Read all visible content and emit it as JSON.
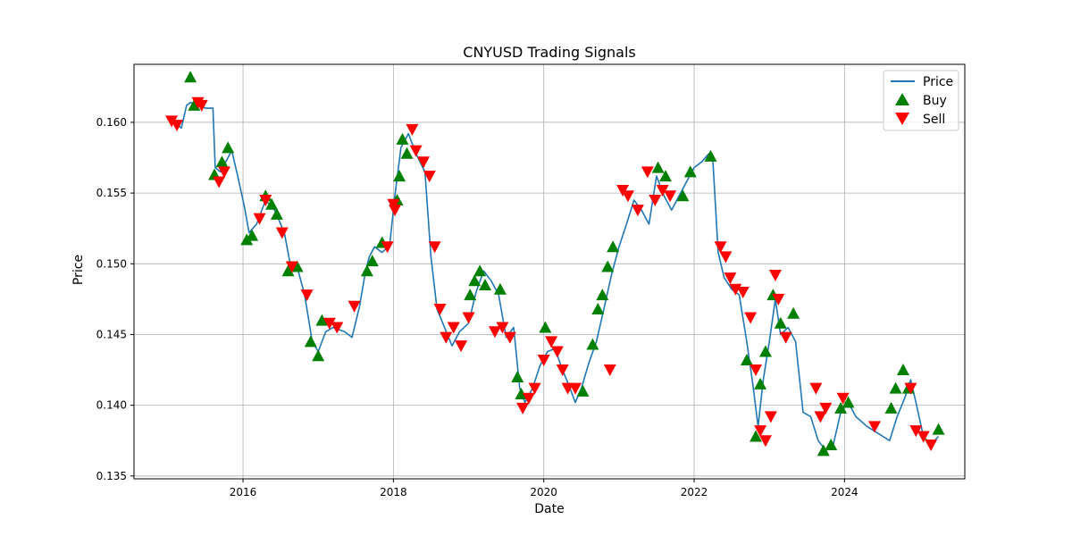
{
  "chart_data": {
    "type": "line",
    "title": "CNYUSD Trading Signals",
    "xlabel": "Date",
    "ylabel": "Price",
    "xlim": [
      2014.55,
      2025.6
    ],
    "ylim": [
      0.1348,
      0.1641
    ],
    "grid": true,
    "legend_position": "top-right",
    "x_ticks": [
      2016,
      2018,
      2020,
      2022,
      2024
    ],
    "x_tick_labels": [
      "2016",
      "2018",
      "2020",
      "2022",
      "2024"
    ],
    "y_ticks": [
      0.135,
      0.14,
      0.145,
      0.15,
      0.155,
      0.16
    ],
    "y_tick_labels": [
      "0.135",
      "0.140",
      "0.145",
      "0.150",
      "0.155",
      "0.160"
    ],
    "colors": {
      "price": "#1f77b4",
      "buy": "#008000",
      "sell": "#ff0000",
      "grid": "#b0b0b0"
    },
    "series": [
      {
        "name": "Price",
        "kind": "line",
        "x": [
          2015.05,
          2015.18,
          2015.25,
          2015.3,
          2015.42,
          2015.5,
          2015.6,
          2015.63,
          2015.7,
          2015.78,
          2015.85,
          2015.93,
          2016.02,
          2016.08,
          2016.18,
          2016.3,
          2016.42,
          2016.55,
          2016.62,
          2016.72,
          2016.82,
          2016.92,
          2017.0,
          2017.1,
          2017.2,
          2017.35,
          2017.45,
          2017.55,
          2017.63,
          2017.68,
          2017.75,
          2017.85,
          2017.95,
          2018.02,
          2018.1,
          2018.2,
          2018.3,
          2018.42,
          2018.5,
          2018.58,
          2018.68,
          2018.78,
          2018.88,
          2019.0,
          2019.1,
          2019.2,
          2019.3,
          2019.4,
          2019.5,
          2019.6,
          2019.68,
          2019.75,
          2019.85,
          2019.95,
          2020.05,
          2020.15,
          2020.25,
          2020.35,
          2020.42,
          2020.5,
          2020.6,
          2020.7,
          2020.8,
          2020.9,
          2021.0,
          2021.1,
          2021.2,
          2021.3,
          2021.4,
          2021.5,
          2021.6,
          2021.7,
          2021.8,
          2021.9,
          2022.0,
          2022.1,
          2022.2,
          2022.25,
          2022.32,
          2022.4,
          2022.5,
          2022.6,
          2022.7,
          2022.78,
          2022.85,
          2022.92,
          2023.0,
          2023.08,
          2023.15,
          2023.25,
          2023.35,
          2023.45,
          2023.55,
          2023.65,
          2023.75,
          2023.85,
          2023.95,
          2024.05,
          2024.15,
          2024.3,
          2024.45,
          2024.6,
          2024.7,
          2024.8,
          2024.88,
          2024.95,
          2025.05,
          2025.15,
          2025.25
        ],
        "y": [
          0.1601,
          0.1596,
          0.1612,
          0.1614,
          0.1612,
          0.161,
          0.161,
          0.1568,
          0.1565,
          0.1573,
          0.158,
          0.1562,
          0.154,
          0.1522,
          0.1528,
          0.1545,
          0.1538,
          0.1522,
          0.1502,
          0.1498,
          0.1478,
          0.1445,
          0.1438,
          0.1452,
          0.1455,
          0.1452,
          0.1448,
          0.147,
          0.1495,
          0.1505,
          0.1512,
          0.1508,
          0.1513,
          0.1548,
          0.1582,
          0.1592,
          0.1578,
          0.1565,
          0.1505,
          0.1468,
          0.1455,
          0.1442,
          0.1452,
          0.1458,
          0.148,
          0.1495,
          0.1488,
          0.1478,
          0.1448,
          0.1455,
          0.1412,
          0.1402,
          0.1412,
          0.1428,
          0.1438,
          0.144,
          0.1425,
          0.1412,
          0.1402,
          0.1412,
          0.143,
          0.1445,
          0.1468,
          0.1492,
          0.1512,
          0.1528,
          0.1545,
          0.1538,
          0.1528,
          0.1562,
          0.1548,
          0.1538,
          0.1548,
          0.1558,
          0.1568,
          0.1572,
          0.1578,
          0.1572,
          0.1508,
          0.149,
          0.1482,
          0.1478,
          0.1445,
          0.1415,
          0.1385,
          0.1418,
          0.1445,
          0.1475,
          0.145,
          0.1455,
          0.1445,
          0.1395,
          0.1392,
          0.1375,
          0.1368,
          0.1372,
          0.1395,
          0.1402,
          0.1392,
          0.1385,
          0.138,
          0.1375,
          0.1392,
          0.1405,
          0.1418,
          0.1402,
          0.1378,
          0.1372,
          0.1378
        ]
      },
      {
        "name": "Buy",
        "kind": "marker",
        "x": [
          2015.3,
          2015.35,
          2015.62,
          2015.72,
          2015.8,
          2016.05,
          2016.12,
          2016.3,
          2016.38,
          2016.45,
          2016.6,
          2016.72,
          2016.9,
          2017.0,
          2017.05,
          2017.65,
          2017.72,
          2017.85,
          2018.05,
          2018.08,
          2018.12,
          2018.18,
          2019.02,
          2019.08,
          2019.15,
          2019.22,
          2019.42,
          2019.65,
          2019.7,
          2020.02,
          2020.52,
          2020.65,
          2020.72,
          2020.78,
          2020.85,
          2020.92,
          2021.52,
          2021.62,
          2021.85,
          2021.95,
          2022.22,
          2022.7,
          2022.82,
          2022.88,
          2022.95,
          2023.05,
          2023.15,
          2023.32,
          2023.72,
          2023.82,
          2023.95,
          2024.05,
          2024.62,
          2024.68,
          2024.78,
          2024.85,
          2025.25
        ],
        "y": [
          0.1632,
          0.1612,
          0.1563,
          0.1572,
          0.1582,
          0.1517,
          0.152,
          0.1548,
          0.1542,
          0.1535,
          0.1495,
          0.1498,
          0.1445,
          0.1435,
          0.146,
          0.1495,
          0.1502,
          0.1515,
          0.1545,
          0.1562,
          0.1588,
          0.1578,
          0.1478,
          0.1488,
          0.1495,
          0.1485,
          0.1482,
          0.142,
          0.1408,
          0.1455,
          0.141,
          0.1443,
          0.1468,
          0.1478,
          0.1498,
          0.1512,
          0.1568,
          0.1562,
          0.1548,
          0.1565,
          0.1576,
          0.1432,
          0.1378,
          0.1415,
          0.1438,
          0.1478,
          0.1458,
          0.1465,
          0.1368,
          0.1372,
          0.1398,
          0.1402,
          0.1398,
          0.1412,
          0.1425,
          0.1412,
          0.1383
        ]
      },
      {
        "name": "Sell",
        "kind": "marker",
        "x": [
          2015.05,
          2015.12,
          2015.4,
          2015.45,
          2015.68,
          2015.75,
          2016.22,
          2016.3,
          2016.52,
          2016.65,
          2016.85,
          2017.15,
          2017.25,
          2017.48,
          2017.92,
          2018.0,
          2018.02,
          2018.25,
          2018.3,
          2018.4,
          2018.48,
          2018.55,
          2018.62,
          2018.7,
          2018.8,
          2018.9,
          2019.0,
          2019.35,
          2019.45,
          2019.55,
          2019.72,
          2019.8,
          2019.88,
          2020.0,
          2020.1,
          2020.18,
          2020.25,
          2020.32,
          2020.42,
          2020.88,
          2021.05,
          2021.12,
          2021.25,
          2021.38,
          2021.48,
          2021.58,
          2021.68,
          2022.35,
          2022.42,
          2022.48,
          2022.55,
          2022.65,
          2022.75,
          2022.82,
          2022.88,
          2022.95,
          2023.02,
          2023.08,
          2023.12,
          2023.22,
          2023.62,
          2023.68,
          2023.75,
          2023.98,
          2024.4,
          2024.88,
          2024.95,
          2025.05,
          2025.15
        ],
        "y": [
          0.1601,
          0.1598,
          0.1614,
          0.1612,
          0.1558,
          0.1565,
          0.1532,
          0.1545,
          0.1522,
          0.1498,
          0.1478,
          0.1458,
          0.1455,
          0.147,
          0.1512,
          0.1542,
          0.1538,
          0.1595,
          0.158,
          0.1572,
          0.1562,
          0.1512,
          0.1468,
          0.1448,
          0.1455,
          0.1442,
          0.1462,
          0.1452,
          0.1455,
          0.1448,
          0.1398,
          0.1405,
          0.1412,
          0.1432,
          0.1445,
          0.1438,
          0.1425,
          0.1412,
          0.1412,
          0.1425,
          0.1552,
          0.1548,
          0.1538,
          0.1565,
          0.1545,
          0.1552,
          0.1548,
          0.1512,
          0.1505,
          0.149,
          0.1482,
          0.148,
          0.1462,
          0.1425,
          0.1382,
          0.1375,
          0.1392,
          0.1492,
          0.1475,
          0.1448,
          0.1412,
          0.1392,
          0.1398,
          0.1405,
          0.1385,
          0.1412,
          0.1382,
          0.1378,
          0.1372
        ]
      }
    ],
    "legend": [
      {
        "label": "Price",
        "kind": "line"
      },
      {
        "label": "Buy",
        "kind": "marker-up"
      },
      {
        "label": "Sell",
        "kind": "marker-down"
      }
    ]
  }
}
